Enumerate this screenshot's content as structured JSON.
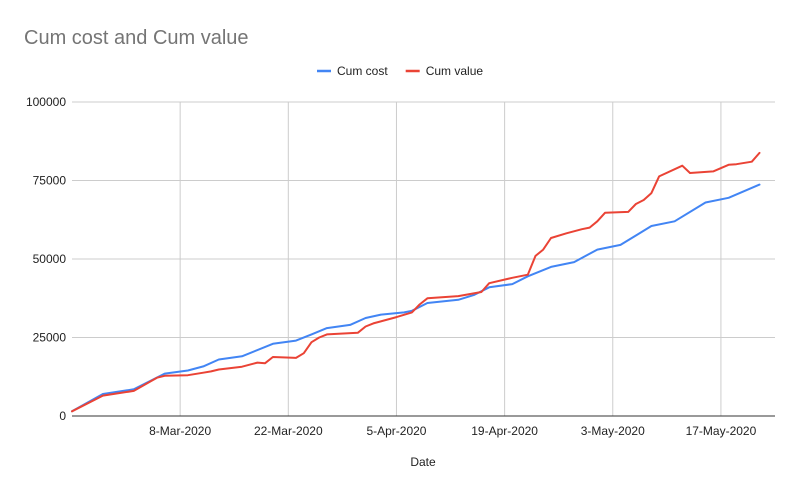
{
  "chart_data": {
    "type": "line",
    "title": "Cum cost and Cum value",
    "xlabel": "Date",
    "ylabel": "",
    "x_range": [
      "2020-02-23",
      "2020-05-24"
    ],
    "ylim": [
      0,
      100000
    ],
    "y_ticks": [
      0,
      25000,
      50000,
      75000,
      100000
    ],
    "x_ticks": [
      {
        "date": "2020-03-08",
        "label": "8-Mar-2020"
      },
      {
        "date": "2020-03-22",
        "label": "22-Mar-2020"
      },
      {
        "date": "2020-04-05",
        "label": "5-Apr-2020"
      },
      {
        "date": "2020-04-19",
        "label": "19-Apr-2020"
      },
      {
        "date": "2020-05-03",
        "label": "3-May-2020"
      },
      {
        "date": "2020-05-17",
        "label": "17-May-2020"
      }
    ],
    "grid": true,
    "legend_position": "top",
    "series": [
      {
        "name": "Cum cost",
        "color": "#4285f4",
        "points": [
          [
            "2020-02-23",
            1500
          ],
          [
            "2020-02-27",
            7000
          ],
          [
            "2020-03-02",
            8500
          ],
          [
            "2020-03-06",
            13500
          ],
          [
            "2020-03-09",
            14500
          ],
          [
            "2020-03-11",
            15800
          ],
          [
            "2020-03-13",
            18000
          ],
          [
            "2020-03-16",
            19000
          ],
          [
            "2020-03-20",
            23000
          ],
          [
            "2020-03-23",
            24000
          ],
          [
            "2020-03-25",
            26000
          ],
          [
            "2020-03-27",
            28000
          ],
          [
            "2020-03-30",
            29000
          ],
          [
            "2020-04-01",
            31200
          ],
          [
            "2020-04-03",
            32300
          ],
          [
            "2020-04-06",
            33000
          ],
          [
            "2020-04-07",
            33500
          ],
          [
            "2020-04-09",
            36000
          ],
          [
            "2020-04-13",
            37000
          ],
          [
            "2020-04-15",
            38500
          ],
          [
            "2020-04-17",
            41000
          ],
          [
            "2020-04-20",
            42000
          ],
          [
            "2020-04-22",
            44500
          ],
          [
            "2020-04-25",
            47500
          ],
          [
            "2020-04-28",
            49000
          ],
          [
            "2020-05-01",
            53000
          ],
          [
            "2020-05-04",
            54500
          ],
          [
            "2020-05-08",
            60500
          ],
          [
            "2020-05-11",
            62000
          ],
          [
            "2020-05-15",
            68000
          ],
          [
            "2020-05-18",
            69500
          ],
          [
            "2020-05-22",
            73700
          ]
        ]
      },
      {
        "name": "Cum value",
        "color": "#ea4335",
        "points": [
          [
            "2020-02-23",
            1500
          ],
          [
            "2020-02-27",
            6500
          ],
          [
            "2020-03-02",
            8000
          ],
          [
            "2020-03-05",
            12200
          ],
          [
            "2020-03-06",
            12800
          ],
          [
            "2020-03-09",
            13000
          ],
          [
            "2020-03-11",
            13800
          ],
          [
            "2020-03-12",
            14200
          ],
          [
            "2020-03-13",
            14800
          ],
          [
            "2020-03-16",
            15700
          ],
          [
            "2020-03-18",
            17000
          ],
          [
            "2020-03-19",
            16800
          ],
          [
            "2020-03-20",
            18800
          ],
          [
            "2020-03-23",
            18500
          ],
          [
            "2020-03-24",
            20000
          ],
          [
            "2020-03-25",
            23500
          ],
          [
            "2020-03-26",
            25000
          ],
          [
            "2020-03-27",
            26000
          ],
          [
            "2020-03-31",
            26500
          ],
          [
            "2020-04-01",
            28500
          ],
          [
            "2020-04-02",
            29500
          ],
          [
            "2020-04-05",
            31500
          ],
          [
            "2020-04-07",
            33000
          ],
          [
            "2020-04-08",
            35500
          ],
          [
            "2020-04-09",
            37500
          ],
          [
            "2020-04-13",
            38200
          ],
          [
            "2020-04-16",
            39500
          ],
          [
            "2020-04-17",
            42300
          ],
          [
            "2020-04-20",
            44000
          ],
          [
            "2020-04-22",
            45000
          ],
          [
            "2020-04-23",
            51000
          ],
          [
            "2020-04-24",
            53000
          ],
          [
            "2020-04-25",
            56700
          ],
          [
            "2020-04-27",
            58200
          ],
          [
            "2020-04-29",
            59500
          ],
          [
            "2020-04-30",
            60000
          ],
          [
            "2020-05-01",
            62000
          ],
          [
            "2020-05-02",
            64700
          ],
          [
            "2020-05-05",
            65000
          ],
          [
            "2020-05-06",
            67500
          ],
          [
            "2020-05-07",
            68800
          ],
          [
            "2020-05-08",
            71000
          ],
          [
            "2020-05-09",
            76300
          ],
          [
            "2020-05-12",
            79700
          ],
          [
            "2020-05-13",
            77400
          ],
          [
            "2020-05-16",
            77900
          ],
          [
            "2020-05-18",
            80000
          ],
          [
            "2020-05-19",
            80200
          ],
          [
            "2020-05-21",
            81000
          ],
          [
            "2020-05-22",
            83800
          ]
        ]
      }
    ]
  }
}
